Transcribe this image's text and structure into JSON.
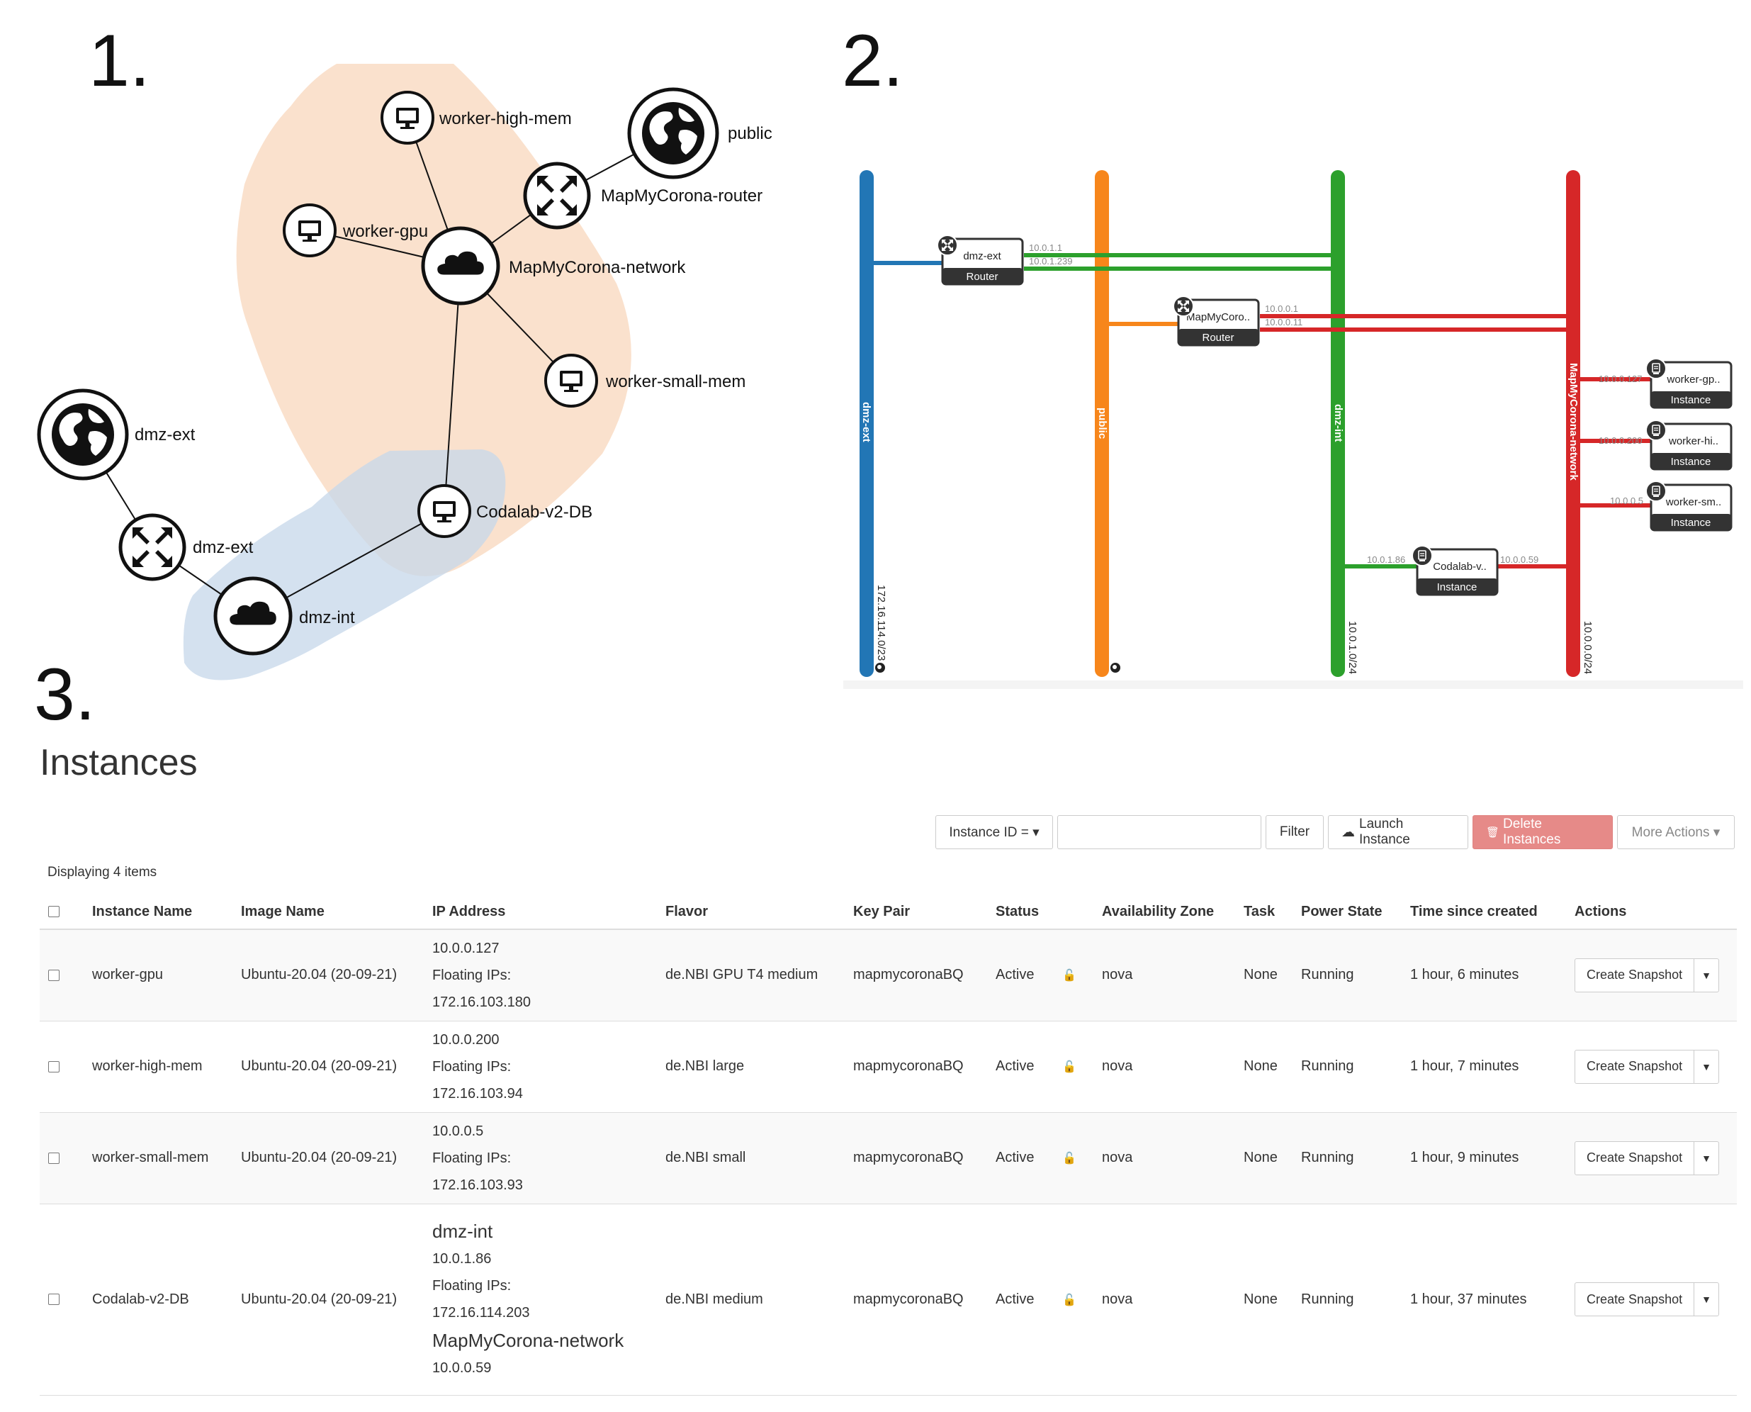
{
  "panel_labels": [
    "1.",
    "2.",
    "3."
  ],
  "topology": {
    "nodes": {
      "worker_high_mem": "worker-high-mem",
      "public": "public",
      "mapmycorona_router": "MapMyCorona-router",
      "worker_gpu": "worker-gpu",
      "mapmycorona_network": "MapMyCorona-network",
      "worker_small_mem": "worker-small-mem",
      "dmz_ext_net": "dmz-ext",
      "dmz_ext_router": "dmz-ext",
      "codalab": "Codalab-v2-DB",
      "dmz_int": "dmz-int"
    },
    "colors": {
      "group_mapmycorona": "#f9dcc4",
      "group_dmz": "#c5d7ea"
    }
  },
  "network_graph": {
    "networks": {
      "dmz_ext": {
        "name": "dmz-ext",
        "cidr": "172.16.114.0/23",
        "color": "#2276b5"
      },
      "public": {
        "name": "public",
        "color": "#f7861b"
      },
      "dmz_int": {
        "name": "dmz-int",
        "cidr": "10.0.1.0/24",
        "color": "#2ca02c"
      },
      "mapmycorona": {
        "name": "MapMyCorona-network",
        "cidr": "10.0.0.0/24",
        "color": "#d62728"
      }
    },
    "devices": {
      "r1": {
        "name": "dmz-ext",
        "type": "Router",
        "ip_a": "10.0.1.1",
        "ip_b": "10.0.1.239"
      },
      "r2": {
        "name": "MapMyCoro..",
        "type": "Router",
        "ip_a": "10.0.0.1",
        "ip_b": "10.0.0.11"
      },
      "i1": {
        "name": "worker-gp..",
        "type": "Instance",
        "ip": "10.0.0.127"
      },
      "i2": {
        "name": "worker-hi..",
        "type": "Instance",
        "ip": "10.0.0.200"
      },
      "i3": {
        "name": "worker-sm..",
        "type": "Instance",
        "ip": "10.0.0.5"
      },
      "i4": {
        "name": "Codalab-v..",
        "type": "Instance",
        "ip_left": "10.0.1.86",
        "ip_right": "10.0.0.59"
      }
    }
  },
  "instances_page": {
    "title": "Instances",
    "toolbar": {
      "filter_select": "Instance ID = ▾",
      "filter_input_value": "",
      "filter_button": "Filter",
      "launch_button": "Launch Instance",
      "delete_button": "Delete Instances",
      "more_actions": "More Actions ▾"
    },
    "displaying": "Displaying 4 items",
    "columns": [
      "Instance Name",
      "Image Name",
      "IP Address",
      "Flavor",
      "Key Pair",
      "Status",
      "Availability Zone",
      "Task",
      "Power State",
      "Time since created",
      "Actions"
    ],
    "rows": [
      {
        "name": "worker-gpu",
        "image": "Ubuntu-20.04 (20-09-21)",
        "ip": "10.0.0.127",
        "fip_label": "Floating IPs:",
        "fip": "172.16.103.180",
        "flavor": "de.NBI GPU T4 medium",
        "key": "mapmycoronaBQ",
        "status": "Active",
        "az": "nova",
        "task": "None",
        "power": "Running",
        "time": "1 hour, 6 minutes",
        "action": "Create Snapshot"
      },
      {
        "name": "worker-high-mem",
        "image": "Ubuntu-20.04 (20-09-21)",
        "ip": "10.0.0.200",
        "fip_label": "Floating IPs:",
        "fip": "172.16.103.94",
        "flavor": "de.NBI large",
        "key": "mapmycoronaBQ",
        "status": "Active",
        "az": "nova",
        "task": "None",
        "power": "Running",
        "time": "1 hour, 7 minutes",
        "action": "Create Snapshot"
      },
      {
        "name": "worker-small-mem",
        "image": "Ubuntu-20.04 (20-09-21)",
        "ip": "10.0.0.5",
        "fip_label": "Floating IPs:",
        "fip": "172.16.103.93",
        "flavor": "de.NBI small",
        "key": "mapmycoronaBQ",
        "status": "Active",
        "az": "nova",
        "task": "None",
        "power": "Running",
        "time": "1 hour, 9 minutes",
        "action": "Create Snapshot"
      },
      {
        "name": "Codalab-v2-DB",
        "image": "Ubuntu-20.04 (20-09-21)",
        "net1": "dmz-int",
        "ip1": "10.0.1.86",
        "fip_label": "Floating IPs:",
        "fip": "172.16.114.203",
        "net2": "MapMyCorona-network",
        "ip2": "10.0.0.59",
        "flavor": "de.NBI medium",
        "key": "mapmycoronaBQ",
        "status": "Active",
        "az": "nova",
        "task": "None",
        "power": "Running",
        "time": "1 hour, 37 minutes",
        "action": "Create Snapshot"
      }
    ]
  }
}
